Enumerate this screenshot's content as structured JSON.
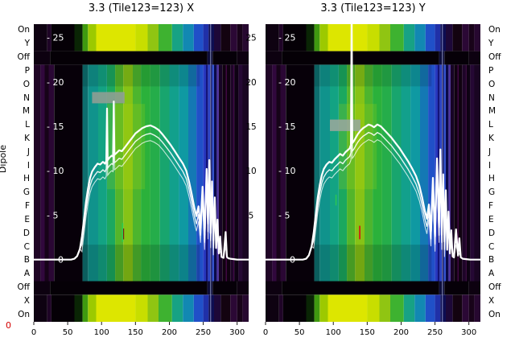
{
  "figure": {
    "left_axis_label": "Dipole",
    "corner_label": "0",
    "row_labels": [
      "On",
      "Y",
      "Off",
      "P",
      "O",
      "N",
      "M",
      "L",
      "K",
      "J",
      "I",
      "H",
      "G",
      "F",
      "E",
      "D",
      "C",
      "B",
      "A",
      "Off",
      "X",
      "On"
    ],
    "x_ticks": [
      0,
      50,
      100,
      150,
      200,
      250,
      300
    ],
    "inner_y_ticks": [
      {
        "v": 25,
        "text": "- 25"
      },
      {
        "v": 20,
        "text": "- 20"
      },
      {
        "v": 15,
        "text": "- 15"
      },
      {
        "v": 10,
        "text": "- 10"
      },
      {
        "v": 5,
        "text": "- 5"
      },
      {
        "v": 0,
        "text": "0",
        "dx": 30
      }
    ],
    "gap_y_ticks": [
      25,
      20,
      15,
      10,
      5
    ],
    "colors": {
      "line": "#ffffff",
      "inner_tick_text": "#ffffff",
      "axis_text": "#000000",
      "corner_label": "#d40000",
      "background": "#ffffff"
    },
    "heatmap": {
      "row_structure": [
        {
          "r0": 0,
          "r1": 2,
          "palette": "bright"
        },
        {
          "r0": 2,
          "r1": 3,
          "palette": "dark"
        },
        {
          "r0": 3,
          "r1": 19,
          "palette": "main"
        },
        {
          "r0": 19,
          "r1": 20,
          "palette": "dark"
        },
        {
          "r0": 20,
          "r1": 22,
          "palette": "bright"
        }
      ],
      "main_bands": [
        [
          0,
          10,
          "#1f0526"
        ],
        [
          10,
          16,
          "#31083d"
        ],
        [
          16,
          22,
          "#160318"
        ],
        [
          22,
          30,
          "#2a0734"
        ],
        [
          30,
          72,
          "#070009"
        ],
        [
          72,
          80,
          "#0d6e6e"
        ],
        [
          80,
          95,
          "#10938c"
        ],
        [
          95,
          108,
          "#13a383"
        ],
        [
          108,
          120,
          "#1ba85f"
        ],
        [
          120,
          132,
          "#53b52a"
        ],
        [
          132,
          146,
          "#86c316"
        ],
        [
          146,
          158,
          "#4db52e"
        ],
        [
          158,
          172,
          "#2bb13b"
        ],
        [
          172,
          186,
          "#25ad4a"
        ],
        [
          186,
          200,
          "#18a56e"
        ],
        [
          200,
          214,
          "#12a08c"
        ],
        [
          214,
          228,
          "#0f99a2"
        ],
        [
          228,
          240,
          "#1478b4"
        ],
        [
          240,
          250,
          "#2050c8"
        ],
        [
          250,
          254,
          "#2838c0"
        ],
        [
          254,
          257,
          "#14147a"
        ],
        [
          257,
          260,
          "#2a42c6"
        ],
        [
          260,
          263,
          "#0c0c55"
        ],
        [
          263,
          266,
          "#3555cf"
        ],
        [
          266,
          270,
          "#0a0a48"
        ],
        [
          270,
          273,
          "#4a30a0"
        ],
        [
          273,
          278,
          "#170425"
        ],
        [
          278,
          290,
          "#100210"
        ],
        [
          290,
          296,
          "#1e0528"
        ],
        [
          296,
          302,
          "#0e0213"
        ],
        [
          302,
          308,
          "#250834"
        ],
        [
          308,
          317,
          "#190522"
        ]
      ],
      "bright_bands": [
        [
          0,
          20,
          "#0e0211"
        ],
        [
          20,
          26,
          "#1f0527"
        ],
        [
          26,
          60,
          "#050006"
        ],
        [
          60,
          72,
          "#0a2505"
        ],
        [
          72,
          80,
          "#3f9a10"
        ],
        [
          80,
          92,
          "#9cc900"
        ],
        [
          92,
          150,
          "#dde600"
        ],
        [
          150,
          168,
          "#c8de00"
        ],
        [
          168,
          184,
          "#90c512"
        ],
        [
          184,
          204,
          "#3eb230"
        ],
        [
          204,
          220,
          "#17a284"
        ],
        [
          220,
          236,
          "#1288b2"
        ],
        [
          236,
          250,
          "#2050c8"
        ],
        [
          250,
          258,
          "#2030a8"
        ],
        [
          258,
          266,
          "#0d0d52"
        ],
        [
          266,
          276,
          "#1d0838"
        ],
        [
          276,
          290,
          "#130310"
        ],
        [
          290,
          300,
          "#2b0835"
        ],
        [
          300,
          308,
          "#180319"
        ],
        [
          308,
          317,
          "#270830"
        ]
      ],
      "dark_bands": [
        [
          0,
          24,
          "#0d0110"
        ],
        [
          24,
          256,
          "#050006"
        ],
        [
          256,
          264,
          "#0d0d3a"
        ],
        [
          264,
          300,
          "#060008"
        ],
        [
          300,
          317,
          "#0d0110"
        ]
      ]
    }
  },
  "chart_data": [
    {
      "type": "heatmap",
      "title": "3.3 (Tile123=123) X",
      "xlim": [
        0,
        317
      ],
      "value_lim": [
        -7,
        26.5
      ],
      "x_ticks": [
        0,
        50,
        100,
        150,
        200,
        250,
        300
      ],
      "line": {
        "x": [
          0,
          40,
          55,
          60,
          64,
          68,
          71,
          74,
          77,
          80,
          83,
          86,
          90,
          94,
          98,
          102,
          105,
          107,
          108,
          109,
          112,
          115,
          117,
          118,
          119,
          122,
          126,
          130,
          134,
          138,
          142,
          146,
          150,
          155,
          160,
          166,
          172,
          178,
          184,
          190,
          196,
          202,
          208,
          214,
          220,
          225,
          229,
          233,
          237,
          240,
          243,
          246,
          249,
          252,
          255,
          257,
          259,
          261,
          263,
          265,
          267,
          269,
          271,
          273,
          275,
          277,
          280,
          283,
          285,
          287,
          290,
          295,
          300,
          310,
          317
        ],
        "v": [
          0,
          0,
          0,
          0.1,
          0.4,
          1.2,
          2.6,
          4.5,
          6.5,
          8.0,
          9.2,
          9.9,
          10.4,
          10.8,
          10.7,
          11.0,
          10.8,
          11.1,
          17.0,
          11.2,
          11.5,
          11.7,
          11.6,
          17.8,
          11.8,
          12.0,
          12.3,
          12.2,
          12.6,
          13.0,
          13.4,
          13.8,
          14.2,
          14.5,
          14.8,
          15.0,
          15.1,
          14.9,
          14.6,
          14.1,
          13.5,
          12.9,
          12.2,
          11.5,
          10.8,
          10.0,
          8.8,
          7.4,
          5.8,
          4.9,
          6.0,
          3.6,
          8.2,
          2.8,
          10.2,
          4.0,
          11.2,
          3.0,
          8.8,
          2.2,
          7.0,
          1.3,
          4.5,
          0.7,
          2.6,
          0.3,
          0.2,
          3.1,
          0.3,
          0.15,
          0.1,
          0.05,
          0,
          0,
          0
        ]
      },
      "artifacts": [
        {
          "type": "rect",
          "x0": 108,
          "x1": 164,
          "r0": 5.9,
          "r1": 12.2,
          "color": "#c8dc00",
          "opacity": 0.18
        },
        {
          "type": "rect",
          "x0": 72,
          "x1": 245,
          "r0": 16.3,
          "r1": 19,
          "color": "#000000",
          "opacity": 0.15
        },
        {
          "type": "rect",
          "x0": 72,
          "x1": 245,
          "r0": 3,
          "r1": 4.6,
          "color": "#000000",
          "opacity": 0.12
        },
        {
          "type": "rect",
          "x0": 86,
          "x1": 134,
          "r0": 5.02,
          "r1": 5.85,
          "color": "#8f9f93",
          "opacity": 0.9
        },
        {
          "type": "vline",
          "x": 131,
          "w": 1.8,
          "r0": 14.7,
          "r1": 16.1,
          "color": "#2ecb4e",
          "opacity": 0.95
        },
        {
          "type": "vline",
          "x": 132.5,
          "w": 1.2,
          "r0": 15.1,
          "r1": 15.9,
          "color": "#7a1212",
          "opacity": 0.9
        },
        {
          "type": "vline",
          "x": 261,
          "w": 1,
          "r0": 0,
          "r1": 22,
          "color": "#cdd9ff",
          "opacity": 0.65
        },
        {
          "type": "vline",
          "x": 284,
          "w": 1.2,
          "r0": 3,
          "r1": 19,
          "color": "#8a128f",
          "opacity": 0.5
        },
        {
          "type": "vline",
          "x": 295,
          "w": 1,
          "r0": 3,
          "r1": 19,
          "color": "#6f0d74",
          "opacity": 0.45
        }
      ]
    },
    {
      "type": "heatmap",
      "title": "3.3 (Tile123=123) Y",
      "xlim": [
        0,
        317
      ],
      "value_lim": [
        -7,
        26.5
      ],
      "x_ticks": [
        0,
        50,
        100,
        150,
        200,
        250,
        300
      ],
      "line": {
        "x": [
          0,
          40,
          55,
          60,
          64,
          68,
          71,
          74,
          77,
          80,
          83,
          86,
          90,
          94,
          98,
          102,
          106,
          110,
          114,
          118,
          121,
          124,
          126,
          127,
          128,
          130,
          133,
          136,
          140,
          144,
          148,
          152,
          156,
          160,
          165,
          170,
          175,
          180,
          186,
          192,
          198,
          204,
          210,
          216,
          222,
          227,
          231,
          235,
          238,
          241,
          244,
          247,
          250,
          253,
          256,
          258,
          260,
          262,
          264,
          266,
          268,
          270,
          272,
          274,
          276,
          278,
          281,
          284,
          286,
          288,
          291,
          296,
          302,
          310,
          317
        ],
        "v": [
          0,
          0,
          0,
          0.1,
          0.5,
          1.5,
          3.0,
          5.0,
          7.0,
          8.4,
          9.5,
          10.2,
          10.7,
          11.0,
          10.9,
          11.3,
          11.6,
          11.9,
          11.7,
          12.1,
          12.3,
          12.5,
          12.9,
          29,
          13.1,
          13.3,
          13.7,
          14.1,
          14.5,
          14.8,
          15.0,
          15.2,
          15.1,
          14.9,
          15.2,
          15.0,
          14.6,
          14.2,
          13.7,
          13.1,
          12.5,
          11.8,
          11.1,
          10.3,
          9.4,
          8.3,
          7.0,
          5.5,
          4.6,
          6.2,
          3.2,
          9.2,
          2.6,
          11.4,
          3.6,
          12.4,
          2.8,
          9.6,
          2.0,
          7.8,
          1.1,
          5.4,
          0.7,
          3.3,
          0.35,
          0.25,
          3.4,
          0.45,
          2.4,
          0.25,
          0.1,
          0.05,
          0,
          0,
          0
        ]
      },
      "artifacts": [
        {
          "type": "rect",
          "x0": 108,
          "x1": 164,
          "r0": 5.9,
          "r1": 12.2,
          "color": "#c8dc00",
          "opacity": 0.18
        },
        {
          "type": "rect",
          "x0": 72,
          "x1": 245,
          "r0": 16.3,
          "r1": 19,
          "color": "#000000",
          "opacity": 0.15
        },
        {
          "type": "rect",
          "x0": 72,
          "x1": 245,
          "r0": 3,
          "r1": 4.6,
          "color": "#000000",
          "opacity": 0.12
        },
        {
          "type": "rect",
          "x0": 95,
          "x1": 140,
          "r0": 7.05,
          "r1": 7.9,
          "color": "#97a79b",
          "opacity": 0.9
        },
        {
          "type": "vline",
          "x": 139,
          "w": 1.8,
          "r0": 14.9,
          "r1": 15.9,
          "color": "#d01616",
          "opacity": 0.95
        },
        {
          "type": "vline",
          "x": 104,
          "w": 1.5,
          "r0": 12.6,
          "r1": 13.4,
          "color": "#2ecb4e",
          "opacity": 0.9
        },
        {
          "type": "vline",
          "x": 261,
          "w": 1,
          "r0": 0,
          "r1": 22,
          "color": "#cdd9ff",
          "opacity": 0.65
        },
        {
          "type": "vline",
          "x": 284,
          "w": 1.2,
          "r0": 3,
          "r1": 19,
          "color": "#8a128f",
          "opacity": 0.5
        },
        {
          "type": "vline",
          "x": 296,
          "w": 1,
          "r0": 3,
          "r1": 19,
          "color": "#6f0d74",
          "opacity": 0.45
        }
      ]
    }
  ]
}
